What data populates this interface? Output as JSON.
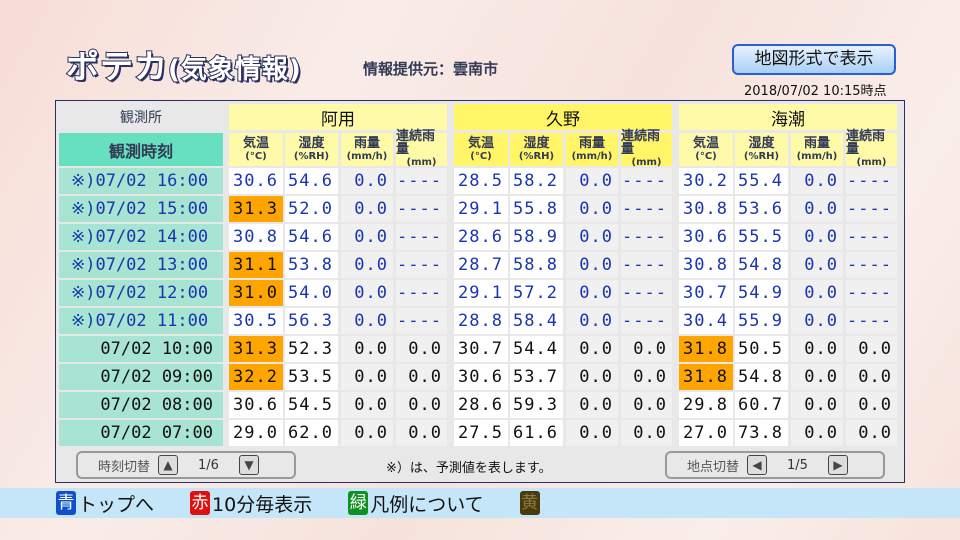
{
  "header": {
    "title_main": "ポテカ",
    "title_sub": "(気象情報)",
    "provider": "情報提供元：雲南市",
    "map_button": "地図形式で表示",
    "timestamp": "2018/07/02 10:15時点"
  },
  "table": {
    "station_label": "観測所",
    "time_label": "観測時刻",
    "stations": [
      "阿用",
      "久野",
      "海潮"
    ],
    "columns": [
      {
        "name": "気温",
        "unit": "(°C)"
      },
      {
        "name": "湿度",
        "unit": "(%RH)"
      },
      {
        "name": "雨量",
        "unit": "(mm/h)"
      },
      {
        "name": "連続雨量",
        "unit": "(mm)"
      }
    ],
    "highlight_color": "#ffa500",
    "forecast_color": "#1a35b0",
    "rows": [
      {
        "time": "※)07/02 16:00",
        "forecast": true,
        "values": [
          [
            "30.6",
            "54.6",
            "0.0",
            "----"
          ],
          [
            "28.5",
            "58.2",
            "0.0",
            "----"
          ],
          [
            "30.2",
            "55.4",
            "0.0",
            "----"
          ]
        ],
        "hot": [
          false,
          false,
          false
        ]
      },
      {
        "time": "※)07/02 15:00",
        "forecast": true,
        "values": [
          [
            "31.3",
            "52.0",
            "0.0",
            "----"
          ],
          [
            "29.1",
            "55.8",
            "0.0",
            "----"
          ],
          [
            "30.8",
            "53.6",
            "0.0",
            "----"
          ]
        ],
        "hot": [
          true,
          false,
          false
        ]
      },
      {
        "time": "※)07/02 14:00",
        "forecast": true,
        "values": [
          [
            "30.8",
            "54.6",
            "0.0",
            "----"
          ],
          [
            "28.6",
            "58.9",
            "0.0",
            "----"
          ],
          [
            "30.6",
            "55.5",
            "0.0",
            "----"
          ]
        ],
        "hot": [
          false,
          false,
          false
        ]
      },
      {
        "time": "※)07/02 13:00",
        "forecast": true,
        "values": [
          [
            "31.1",
            "53.8",
            "0.0",
            "----"
          ],
          [
            "28.7",
            "58.8",
            "0.0",
            "----"
          ],
          [
            "30.8",
            "54.8",
            "0.0",
            "----"
          ]
        ],
        "hot": [
          true,
          false,
          false
        ]
      },
      {
        "time": "※)07/02 12:00",
        "forecast": true,
        "values": [
          [
            "31.0",
            "54.0",
            "0.0",
            "----"
          ],
          [
            "29.1",
            "57.2",
            "0.0",
            "----"
          ],
          [
            "30.7",
            "54.9",
            "0.0",
            "----"
          ]
        ],
        "hot": [
          true,
          false,
          false
        ]
      },
      {
        "time": "※)07/02 11:00",
        "forecast": true,
        "values": [
          [
            "30.5",
            "56.3",
            "0.0",
            "----"
          ],
          [
            "28.8",
            "58.4",
            "0.0",
            "----"
          ],
          [
            "30.4",
            "55.9",
            "0.0",
            "----"
          ]
        ],
        "hot": [
          false,
          false,
          false
        ]
      },
      {
        "time": "07/02 10:00",
        "forecast": false,
        "values": [
          [
            "31.3",
            "52.3",
            "0.0",
            "0.0"
          ],
          [
            "30.7",
            "54.4",
            "0.0",
            "0.0"
          ],
          [
            "31.8",
            "50.5",
            "0.0",
            "0.0"
          ]
        ],
        "hot": [
          true,
          false,
          true
        ]
      },
      {
        "time": "07/02 09:00",
        "forecast": false,
        "values": [
          [
            "32.2",
            "53.5",
            "0.0",
            "0.0"
          ],
          [
            "30.6",
            "53.7",
            "0.0",
            "0.0"
          ],
          [
            "31.8",
            "54.8",
            "0.0",
            "0.0"
          ]
        ],
        "hot": [
          true,
          false,
          true
        ]
      },
      {
        "time": "07/02 08:00",
        "forecast": false,
        "values": [
          [
            "30.6",
            "54.5",
            "0.0",
            "0.0"
          ],
          [
            "28.6",
            "59.3",
            "0.0",
            "0.0"
          ],
          [
            "29.8",
            "60.7",
            "0.0",
            "0.0"
          ]
        ],
        "hot": [
          false,
          false,
          false
        ]
      },
      {
        "time": "07/02 07:00",
        "forecast": false,
        "values": [
          [
            "29.0",
            "62.0",
            "0.0",
            "0.0"
          ],
          [
            "27.5",
            "61.6",
            "0.0",
            "0.0"
          ],
          [
            "27.0",
            "73.8",
            "0.0",
            "0.0"
          ]
        ],
        "hot": [
          false,
          false,
          false
        ]
      }
    ]
  },
  "controls": {
    "time_switch": "時刻切替",
    "time_page": "1/6",
    "note": "※）は、予測値を表します。",
    "station_switch": "地点切替",
    "station_page": "1/5"
  },
  "footer": [
    {
      "key": "青",
      "label": "トップへ",
      "color": "#1050c8"
    },
    {
      "key": "赤",
      "label": "10分毎表示",
      "color": "#e01010"
    },
    {
      "key": "緑",
      "label": "凡例について",
      "color": "#109020"
    },
    {
      "key": "黄",
      "label": "",
      "color": "#4a3a10"
    }
  ]
}
